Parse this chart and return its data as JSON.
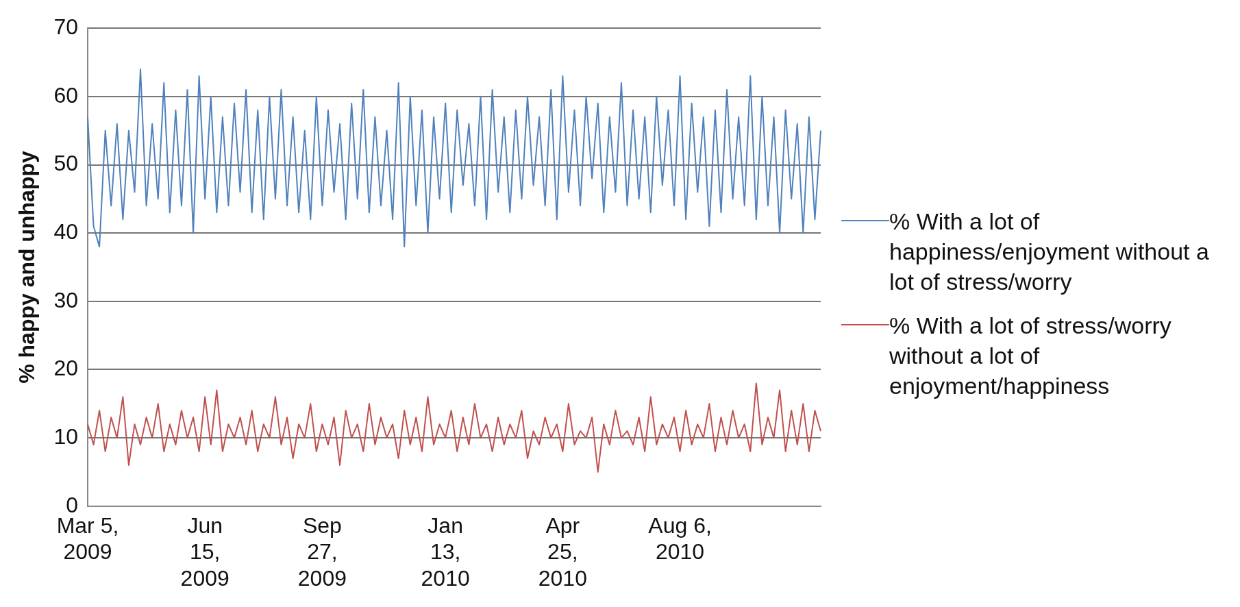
{
  "chart_data": {
    "type": "line",
    "ylabel": "% happy and unhappy",
    "ylim": [
      0,
      70
    ],
    "yticks": [
      0,
      10,
      20,
      30,
      40,
      50,
      60,
      70
    ],
    "grid": "y",
    "legend": "right",
    "marker": "none",
    "line_style": "solid",
    "categories": [
      "Mar 5, 2009",
      null,
      null,
      null,
      null,
      null,
      null,
      null,
      null,
      null,
      null,
      null,
      null,
      null,
      null,
      null,
      null,
      null,
      null,
      null,
      "Jun 15, 2009",
      null,
      null,
      null,
      null,
      null,
      null,
      null,
      null,
      null,
      null,
      null,
      null,
      null,
      null,
      null,
      null,
      null,
      null,
      null,
      "Sep 27, 2009",
      null,
      null,
      null,
      null,
      null,
      null,
      null,
      null,
      null,
      null,
      null,
      null,
      null,
      null,
      null,
      null,
      null,
      null,
      null,
      null,
      "Jan 13, 2010",
      null,
      null,
      null,
      null,
      null,
      null,
      null,
      null,
      null,
      null,
      null,
      null,
      null,
      null,
      null,
      null,
      null,
      null,
      null,
      "Apr 25, 2010",
      null,
      null,
      null,
      null,
      null,
      null,
      null,
      null,
      null,
      null,
      null,
      null,
      null,
      null,
      null,
      null,
      null,
      null,
      null,
      "Aug 6, 2010",
      null,
      null,
      null,
      null,
      null,
      null,
      null,
      null,
      null,
      null,
      null,
      null,
      null,
      null,
      null,
      null,
      null,
      null,
      null,
      null,
      null,
      null,
      null,
      null
    ],
    "series": [
      {
        "name": "% With a lot of happiness/enjoyment without a lot of stress/worry",
        "color": "#4f81bd",
        "values": [
          57,
          41,
          38,
          55,
          44,
          56,
          42,
          55,
          46,
          64,
          44,
          56,
          45,
          62,
          43,
          58,
          44,
          61,
          40,
          63,
          45,
          60,
          43,
          57,
          44,
          59,
          46,
          61,
          43,
          58,
          42,
          60,
          45,
          61,
          44,
          57,
          43,
          55,
          42,
          60,
          44,
          58,
          46,
          56,
          42,
          59,
          45,
          61,
          43,
          57,
          44,
          55,
          42,
          62,
          38,
          60,
          44,
          58,
          40,
          57,
          45,
          59,
          43,
          58,
          47,
          56,
          44,
          60,
          42,
          61,
          46,
          57,
          43,
          58,
          45,
          60,
          47,
          57,
          44,
          61,
          42,
          63,
          46,
          58,
          44,
          60,
          48,
          59,
          43,
          57,
          46,
          62,
          44,
          58,
          45,
          57,
          43,
          60,
          47,
          58,
          44,
          63,
          42,
          59,
          46,
          57,
          41,
          58,
          43,
          61,
          45,
          57,
          44,
          63,
          42,
          60,
          44,
          57,
          40,
          58,
          45,
          56,
          40,
          57,
          42,
          55
        ]
      },
      {
        "name": "% With a lot of stress/worry without a lot of enjoyment/happiness",
        "color": "#c0504d",
        "values": [
          12,
          9,
          14,
          8,
          13,
          10,
          16,
          6,
          12,
          9,
          13,
          10,
          15,
          8,
          12,
          9,
          14,
          10,
          13,
          8,
          16,
          9,
          17,
          8,
          12,
          10,
          13,
          9,
          14,
          8,
          12,
          10,
          16,
          9,
          13,
          7,
          12,
          10,
          15,
          8,
          12,
          9,
          13,
          6,
          14,
          10,
          12,
          8,
          15,
          9,
          13,
          10,
          12,
          7,
          14,
          9,
          13,
          8,
          16,
          9,
          12,
          10,
          14,
          8,
          13,
          9,
          15,
          10,
          12,
          8,
          13,
          9,
          12,
          10,
          14,
          7,
          11,
          9,
          13,
          10,
          12,
          8,
          15,
          9,
          11,
          10,
          13,
          5,
          12,
          9,
          14,
          10,
          11,
          9,
          13,
          8,
          16,
          9,
          12,
          10,
          13,
          8,
          14,
          9,
          12,
          10,
          15,
          8,
          13,
          9,
          14,
          10,
          12,
          8,
          18,
          9,
          13,
          10,
          17,
          8,
          14,
          9,
          15,
          8,
          14,
          11
        ]
      }
    ]
  }
}
